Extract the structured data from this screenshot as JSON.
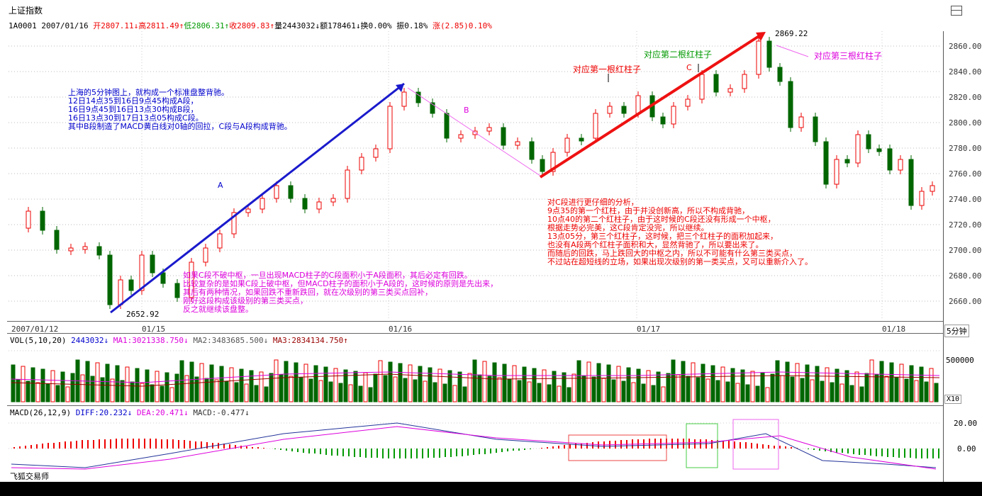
{
  "window": {
    "title": "上证指数"
  },
  "quote": {
    "code": "1A0001",
    "date": "2007/01/16",
    "open": "开2807.11↓",
    "high": "高2811.49↑",
    "low": "低2806.31↑",
    "close": "收2809.83↑",
    "volume": "量2443032↓",
    "amount": "额178461↓",
    "turnover": "换0.00%",
    "amplitude": "振0.18%",
    "change": "涨(2.85)0.10%"
  },
  "price_axis": {
    "labels": [
      "2860.00",
      "2840.00",
      "2820.00",
      "2800.00",
      "2780.00",
      "2760.00",
      "2740.00",
      "2720.00",
      "2700.00",
      "2680.00",
      "2660.00"
    ]
  },
  "date_axis": {
    "labels": [
      "2007/01/12",
      "01/15",
      "01/16",
      "01/17",
      "01/18"
    ],
    "period": "5分钟"
  },
  "extremes": {
    "high_label": "2869.22",
    "low_label": "2652.92"
  },
  "volume_panel": {
    "title": "VOL(5,10,20)",
    "vol": "2443032↓",
    "ma1": "MA1:3021338.750↓",
    "ma2": "MA2:3483685.500↓",
    "ma3": "MA3:2834134.750↑",
    "axis": "500000",
    "unit": "X10"
  },
  "macd_panel": {
    "title": "MACD(26,12,9)",
    "diff": "DIFF:20.232↓",
    "dea": "DEA:20.471↓",
    "macd": "MACD:-0.477↓",
    "axis": [
      "20.00",
      "0.00"
    ]
  },
  "annotations": {
    "label_a": "A",
    "label_b": "B",
    "label_c": "C",
    "first_red": "对应第一根红柱子",
    "second_red": "对应第二根红柱子",
    "third_red": "对应第三根红柱子",
    "blue_note": "上海的5分钟图上，就构成一个标准盘整背驰。\n12日14点35到16日9点45构成A段，\n16日9点45到16日13点30构成B段，\n16日13点30到17日13点05构成C段。\n其中B段制造了MACD黄白线对0轴的回拉，C段与A段构成背驰。",
    "magenta_note": "如果C段不破中枢，一旦出现MACD柱子的C段面积小于A段面积，其后必定有回跌。\n比较复杂的是如果C段上破中枢，但MACD柱子的面积小于A段的，这时候的原则是先出来，\n其后有两种情况，如果回跌不重新跌回，就在次级别的第三类买点回补，\n刚好这段构成该级别的第三类买点，\n反之就继续该盘整。",
    "red_note": "对C段进行更仔细的分析，\n9点35的第一个红柱，由于并没创新高，所以不构成背驰，\n10点40的第二个红柱子，由于这时候的C段还没有形成一个中枢，\n根据走势必完美，这C段肯定没完，所以继续。\n13点05分，第三个红柱子，这时候，把三个红柱子的面积加起来，\n也没有A段两个红柱子面积和大，显然背驰了，所以要出来了。\n而随后的回跌，马上跌回大的中枢之内，所以不可能有什么第三类买点，\n不过站在超短线的立场，如果出现次级别的第一类买点，又可以重新介入了。"
  },
  "footer": {
    "brand": "飞狐交易师"
  },
  "colors": {
    "up": "#ff0000",
    "down": "#006400",
    "trend_a": "#0000cc",
    "trend_c": "#ee0000",
    "b_line": "#ee66ee"
  }
}
